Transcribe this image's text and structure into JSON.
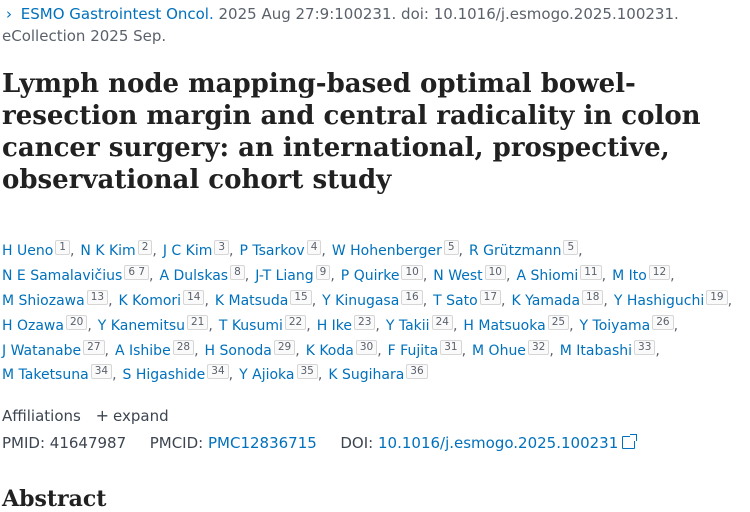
{
  "citation": {
    "journal": "ESMO Gastrointest Oncol.",
    "details": " 2025 Aug 27:9:100231. doi: 10.1016/j.esmogo.2025.100231.",
    "ecollection": "eCollection 2025 Sep."
  },
  "title": "Lymph node mapping-based optimal bowel-resection margin and central radicality in colon cancer surgery: an international, prospective, observational cohort study",
  "author_rows": [
    [
      {
        "name": "H Ueno",
        "aff": "1"
      },
      {
        "name": "N K Kim",
        "aff": "2"
      },
      {
        "name": "J C Kim",
        "aff": "3"
      },
      {
        "name": "P Tsarkov",
        "aff": "4"
      },
      {
        "name": "W Hohenberger",
        "aff": "5"
      },
      {
        "name": "R Grützmann",
        "aff": "5"
      }
    ],
    [
      {
        "name": "N E Samalavičius",
        "aff": "6 7"
      },
      {
        "name": "A Dulskas",
        "aff": "8"
      },
      {
        "name": "J-T Liang",
        "aff": "9"
      },
      {
        "name": "P Quirke",
        "aff": "10"
      },
      {
        "name": "N West",
        "aff": "10"
      },
      {
        "name": "A Shiomi",
        "aff": "11"
      },
      {
        "name": "M Ito",
        "aff": "12"
      }
    ],
    [
      {
        "name": "M Shiozawa",
        "aff": "13"
      },
      {
        "name": "K Komori",
        "aff": "14"
      },
      {
        "name": "K Matsuda",
        "aff": "15"
      },
      {
        "name": "Y Kinugasa",
        "aff": "16"
      },
      {
        "name": "T Sato",
        "aff": "17"
      },
      {
        "name": "K Yamada",
        "aff": "18"
      },
      {
        "name": "Y Hashiguchi",
        "aff": "19"
      }
    ],
    [
      {
        "name": "H Ozawa",
        "aff": "20"
      },
      {
        "name": "Y Kanemitsu",
        "aff": "21"
      },
      {
        "name": "T Kusumi",
        "aff": "22"
      },
      {
        "name": "H Ike",
        "aff": "23"
      },
      {
        "name": "Y Takii",
        "aff": "24"
      },
      {
        "name": "H Matsuoka",
        "aff": "25"
      },
      {
        "name": "Y Toiyama",
        "aff": "26"
      }
    ],
    [
      {
        "name": "J Watanabe",
        "aff": "27"
      },
      {
        "name": "A Ishibe",
        "aff": "28"
      },
      {
        "name": "H Sonoda",
        "aff": "29"
      },
      {
        "name": "K Koda",
        "aff": "30"
      },
      {
        "name": "F Fujita",
        "aff": "31"
      },
      {
        "name": "M Ohue",
        "aff": "32"
      },
      {
        "name": "M Itabashi",
        "aff": "33"
      }
    ],
    [
      {
        "name": "M Taketsuna",
        "aff": "34"
      },
      {
        "name": "S Higashide",
        "aff": "34"
      },
      {
        "name": "Y Ajioka",
        "aff": "35"
      },
      {
        "name": "K Sugihara",
        "aff": "36"
      }
    ]
  ],
  "affiliations": {
    "label": "Affiliations",
    "toggle": "+",
    "expand": "expand"
  },
  "ids": {
    "pmid_label": "PMID:",
    "pmid": "41647987",
    "pmcid_label": "PMCID:",
    "pmcid": "PMC12836715",
    "doi_label": "DOI:",
    "doi": "10.1016/j.esmogo.2025.100231"
  },
  "abstract_heading": "Abstract"
}
